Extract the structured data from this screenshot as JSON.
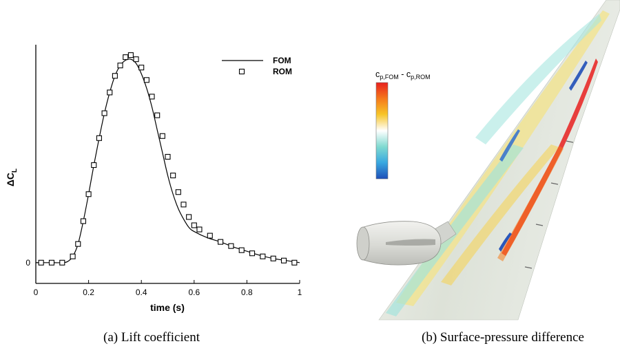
{
  "panel_a": {
    "caption": "(a)  Lift coefficient",
    "chart_data": {
      "type": "line",
      "xlabel": "time (s)",
      "ylabel_main": "ΔC",
      "ylabel_sub": "L",
      "xlim": [
        0,
        1
      ],
      "xticks": [
        "0",
        "0.2",
        "0.4",
        "0.6",
        "0.8",
        "1"
      ],
      "ylim": [
        -0.1,
        1.05
      ],
      "yticks": [
        "0"
      ],
      "grid": false,
      "legend_position": "top-right",
      "series": [
        {
          "name": "FOM",
          "style": "solid-line",
          "x": [
            0,
            0.05,
            0.1,
            0.12,
            0.14,
            0.16,
            0.18,
            0.2,
            0.22,
            0.24,
            0.26,
            0.28,
            0.3,
            0.32,
            0.34,
            0.36,
            0.38,
            0.4,
            0.42,
            0.44,
            0.46,
            0.48,
            0.5,
            0.52,
            0.54,
            0.56,
            0.58,
            0.6,
            0.65,
            0.7,
            0.75,
            0.8,
            0.85,
            0.9,
            0.95,
            1.0
          ],
          "y": [
            0,
            0,
            0,
            0.005,
            0.03,
            0.09,
            0.2,
            0.33,
            0.47,
            0.6,
            0.72,
            0.82,
            0.9,
            0.95,
            0.975,
            0.98,
            0.96,
            0.91,
            0.84,
            0.75,
            0.64,
            0.53,
            0.42,
            0.33,
            0.26,
            0.21,
            0.17,
            0.15,
            0.12,
            0.1,
            0.075,
            0.055,
            0.035,
            0.02,
            0.01,
            0.0
          ]
        },
        {
          "name": "ROM",
          "style": "square-markers",
          "x": [
            0.02,
            0.06,
            0.1,
            0.14,
            0.16,
            0.18,
            0.2,
            0.22,
            0.24,
            0.26,
            0.28,
            0.3,
            0.32,
            0.34,
            0.36,
            0.38,
            0.4,
            0.42,
            0.44,
            0.46,
            0.48,
            0.5,
            0.52,
            0.54,
            0.56,
            0.58,
            0.6,
            0.62,
            0.66,
            0.7,
            0.74,
            0.78,
            0.82,
            0.86,
            0.9,
            0.94,
            0.98
          ],
          "y": [
            0,
            0,
            0,
            0.03,
            0.09,
            0.2,
            0.33,
            0.47,
            0.6,
            0.72,
            0.82,
            0.9,
            0.95,
            0.99,
            1.0,
            0.98,
            0.94,
            0.88,
            0.8,
            0.71,
            0.61,
            0.51,
            0.42,
            0.34,
            0.28,
            0.22,
            0.18,
            0.16,
            0.13,
            0.1,
            0.08,
            0.06,
            0.045,
            0.03,
            0.02,
            0.01,
            0.0
          ]
        }
      ]
    }
  },
  "panel_b": {
    "caption": "(b)  Surface-pressure difference",
    "colorbar_label_main": "c",
    "colorbar_label_sub1": "p,FOM",
    "colorbar_label_sep": " - c",
    "colorbar_label_sub2": "p,ROM",
    "colors": {
      "colormap": [
        "#e8201e",
        "#f57b1c",
        "#f7c528",
        "#ffffff",
        "#7ed9d0",
        "#3aa9e0",
        "#1f4fb8"
      ],
      "wing_base": "#dfe3dd",
      "nacelle": "#e6e6e2"
    }
  }
}
